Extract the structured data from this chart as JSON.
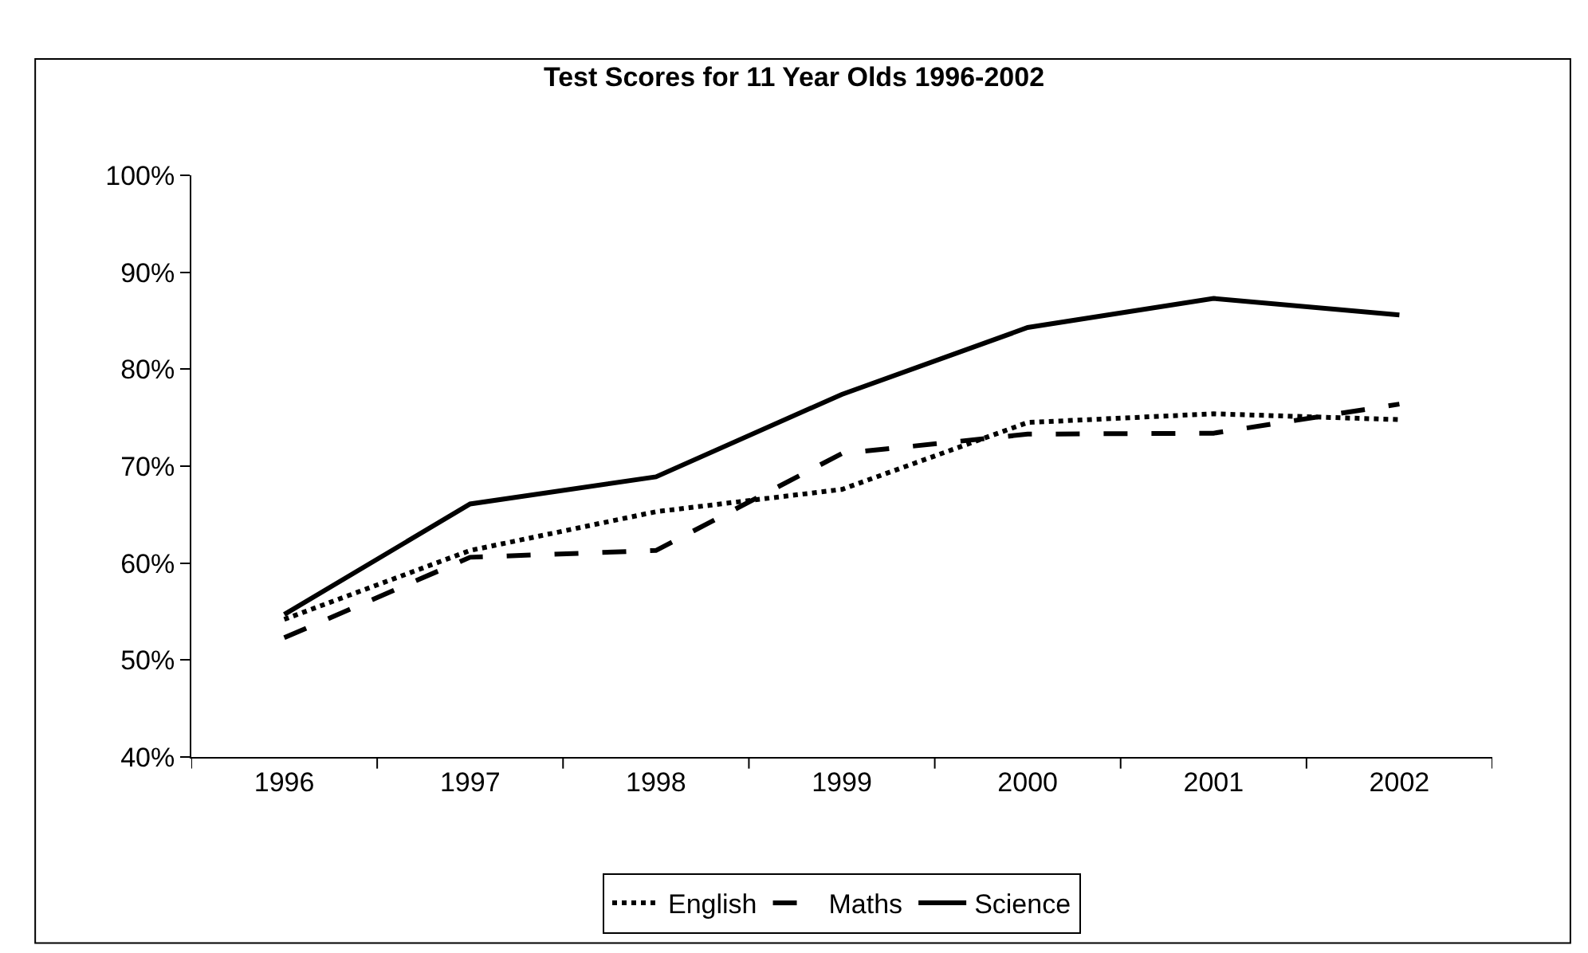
{
  "chart_data": {
    "type": "line",
    "title": "Test Scores for 11 Year Olds 1996-2002",
    "categories": [
      "1996",
      "1997",
      "1998",
      "1999",
      "2000",
      "2001",
      "2002"
    ],
    "series": [
      {
        "name": "English",
        "color": "#000000",
        "line_style": "dotted",
        "values": [
          54.2,
          61.3,
          65.3,
          67.6,
          74.5,
          75.4,
          74.8
        ]
      },
      {
        "name": "Maths",
        "color": "#000000",
        "line_style": "dashed",
        "values": [
          52.3,
          60.6,
          61.3,
          71.3,
          73.3,
          73.4,
          76.4
        ]
      },
      {
        "name": "Science",
        "color": "#000000",
        "line_style": "solid",
        "values": [
          54.7,
          66.1,
          68.9,
          77.4,
          84.3,
          87.3,
          85.6
        ]
      }
    ],
    "ylim": [
      40,
      100
    ],
    "yticks": [
      {
        "value": 40,
        "label": "40%"
      },
      {
        "value": 50,
        "label": "50%"
      },
      {
        "value": 60,
        "label": "60%"
      },
      {
        "value": 70,
        "label": "70%"
      },
      {
        "value": 80,
        "label": "80%"
      },
      {
        "value": 90,
        "label": "90%"
      },
      {
        "value": 100,
        "label": "100%"
      }
    ],
    "grid": false,
    "legend": "bottom",
    "marker": "none"
  }
}
